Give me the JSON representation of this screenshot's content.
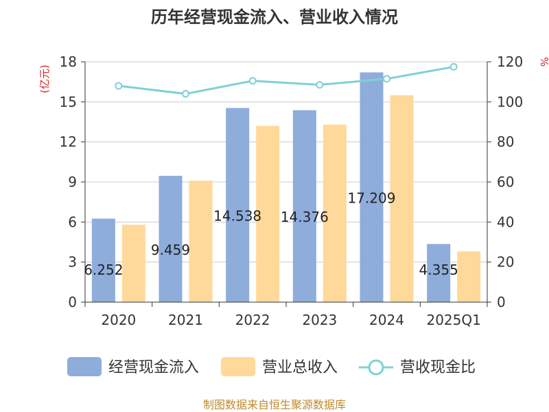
{
  "chart_data": {
    "type": "bar",
    "title": "历年经营现金流入、营业收入情况",
    "categories": [
      "2020",
      "2021",
      "2022",
      "2023",
      "2024",
      "2025Q1"
    ],
    "left_axis": {
      "unit": "(亿元)",
      "ylim": [
        0,
        18
      ],
      "ticks": [
        "0",
        "3",
        "6",
        "9",
        "12",
        "15",
        "18"
      ]
    },
    "right_axis": {
      "unit": "%",
      "ylim": [
        0,
        120
      ],
      "ticks": [
        "0",
        "20",
        "40",
        "60",
        "80",
        "100",
        "120"
      ]
    },
    "series": [
      {
        "name": "经营现金流入",
        "type": "bar",
        "axis": "left",
        "color": "#8eaddb",
        "values": [
          6.252,
          9.459,
          14.538,
          14.376,
          17.209,
          4.355
        ],
        "labels": [
          "6.252",
          "9.459",
          "14.538",
          "14.376",
          "17.209",
          "4.355"
        ]
      },
      {
        "name": "营业总收入",
        "type": "bar",
        "axis": "left",
        "color": "#ffd99a",
        "values": [
          5.8,
          9.1,
          13.2,
          13.3,
          15.5,
          3.8
        ]
      },
      {
        "name": "营收现金比",
        "type": "line",
        "axis": "right",
        "color": "#7fd0d6",
        "values": [
          108,
          104,
          110.5,
          108.5,
          111.5,
          117.5
        ]
      }
    ],
    "grid": true,
    "legend_position": "bottom"
  },
  "source": "制图数据来自恒生聚源数据库"
}
